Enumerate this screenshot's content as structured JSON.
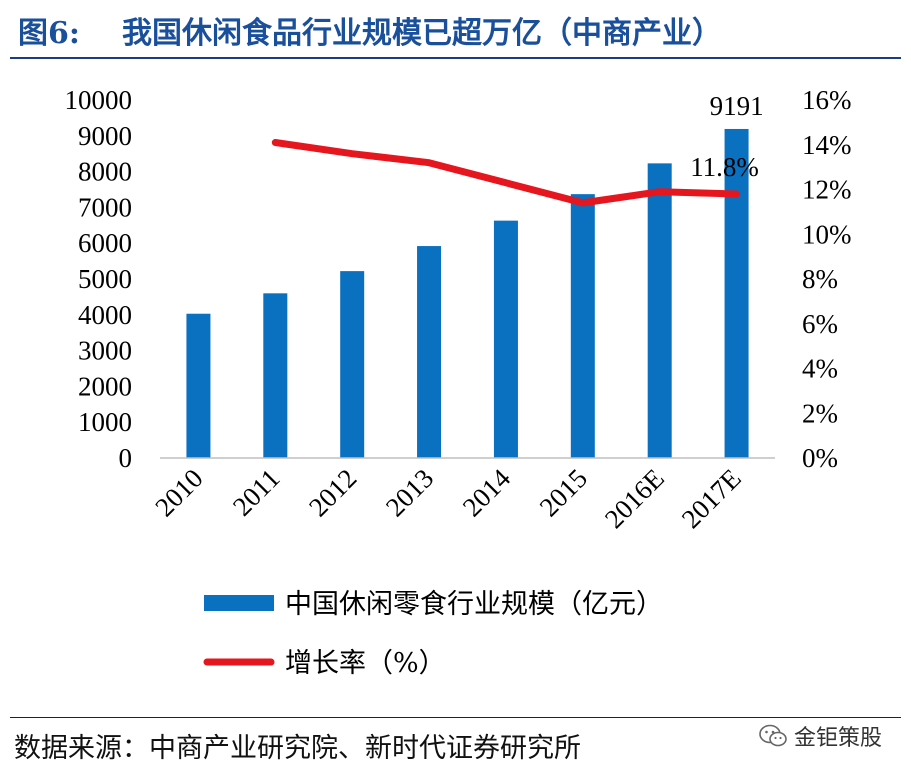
{
  "header": {
    "figure_label": "图6:",
    "title": "我国休闲食品行业规模已超万亿（中商产业）"
  },
  "footer": {
    "source": "数据来源：中商产业研究院、新时代证券研究所",
    "watermark": "金钜策股",
    "watermark_icon": "wechat-icon"
  },
  "colors": {
    "title": "#1a4f9c",
    "bar": "#0a70c0",
    "line": "#e6161f"
  },
  "chart_data": {
    "type": "bar",
    "categories": [
      "2010",
      "2011",
      "2012",
      "2013",
      "2014",
      "2015",
      "2016E",
      "2017E"
    ],
    "series": [
      {
        "name": "中国休闲零食行业规模（亿元）",
        "type": "bar",
        "axis": "left",
        "values": [
          4030,
          4600,
          5220,
          5920,
          6630,
          7370,
          8230,
          9191
        ]
      },
      {
        "name": "增长率（%）",
        "type": "line",
        "axis": "right",
        "values": [
          null,
          14.1,
          13.6,
          13.2,
          12.3,
          11.4,
          11.9,
          11.8
        ]
      }
    ],
    "left_axis": {
      "ylim": [
        0,
        10000
      ],
      "ticks": [
        "0",
        "1000",
        "2000",
        "3000",
        "4000",
        "5000",
        "6000",
        "7000",
        "8000",
        "9000",
        "10000"
      ]
    },
    "right_axis": {
      "ylim": [
        0,
        16
      ],
      "ticks": [
        "0%",
        "2%",
        "4%",
        "6%",
        "8%",
        "10%",
        "12%",
        "14%",
        "16%"
      ]
    },
    "annotations": [
      {
        "text": "9191",
        "category": "2017E",
        "series": 0
      },
      {
        "text": "11.8%",
        "category": "2017E",
        "series": 1
      }
    ],
    "legend_position": "bottom",
    "grid": false
  }
}
